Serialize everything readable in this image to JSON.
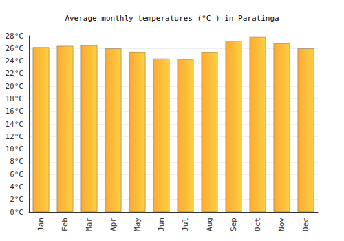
{
  "chart_data": {
    "type": "bar",
    "title": "Average monthly temperatures (°C ) in Paratinga",
    "categories": [
      "Jan",
      "Feb",
      "Mar",
      "Apr",
      "May",
      "Jun",
      "Jul",
      "Aug",
      "Sep",
      "Oct",
      "Nov",
      "Dec"
    ],
    "values": [
      26.2,
      26.4,
      26.5,
      26.0,
      25.4,
      24.4,
      24.3,
      25.4,
      27.2,
      27.8,
      26.8,
      26.0
    ],
    "color": "#fca934",
    "ylim": [
      0,
      28
    ],
    "yticks": [
      {
        "value": 0,
        "label": "0°C"
      },
      {
        "value": 2,
        "label": "2°C"
      },
      {
        "value": 4,
        "label": "4°C"
      },
      {
        "value": 6,
        "label": "6°C"
      },
      {
        "value": 8,
        "label": "8°C"
      },
      {
        "value": 10,
        "label": "10°C"
      },
      {
        "value": 12,
        "label": "12°C"
      },
      {
        "value": 14,
        "label": "14°C"
      },
      {
        "value": 16,
        "label": "16°C"
      },
      {
        "value": 18,
        "label": "18°C"
      },
      {
        "value": 20,
        "label": "20°C"
      },
      {
        "value": 22,
        "label": "22°C"
      },
      {
        "value": 24,
        "label": "24°C"
      },
      {
        "value": 26,
        "label": "26°C"
      },
      {
        "value": 28,
        "label": "28°C"
      }
    ],
    "grid": true
  }
}
